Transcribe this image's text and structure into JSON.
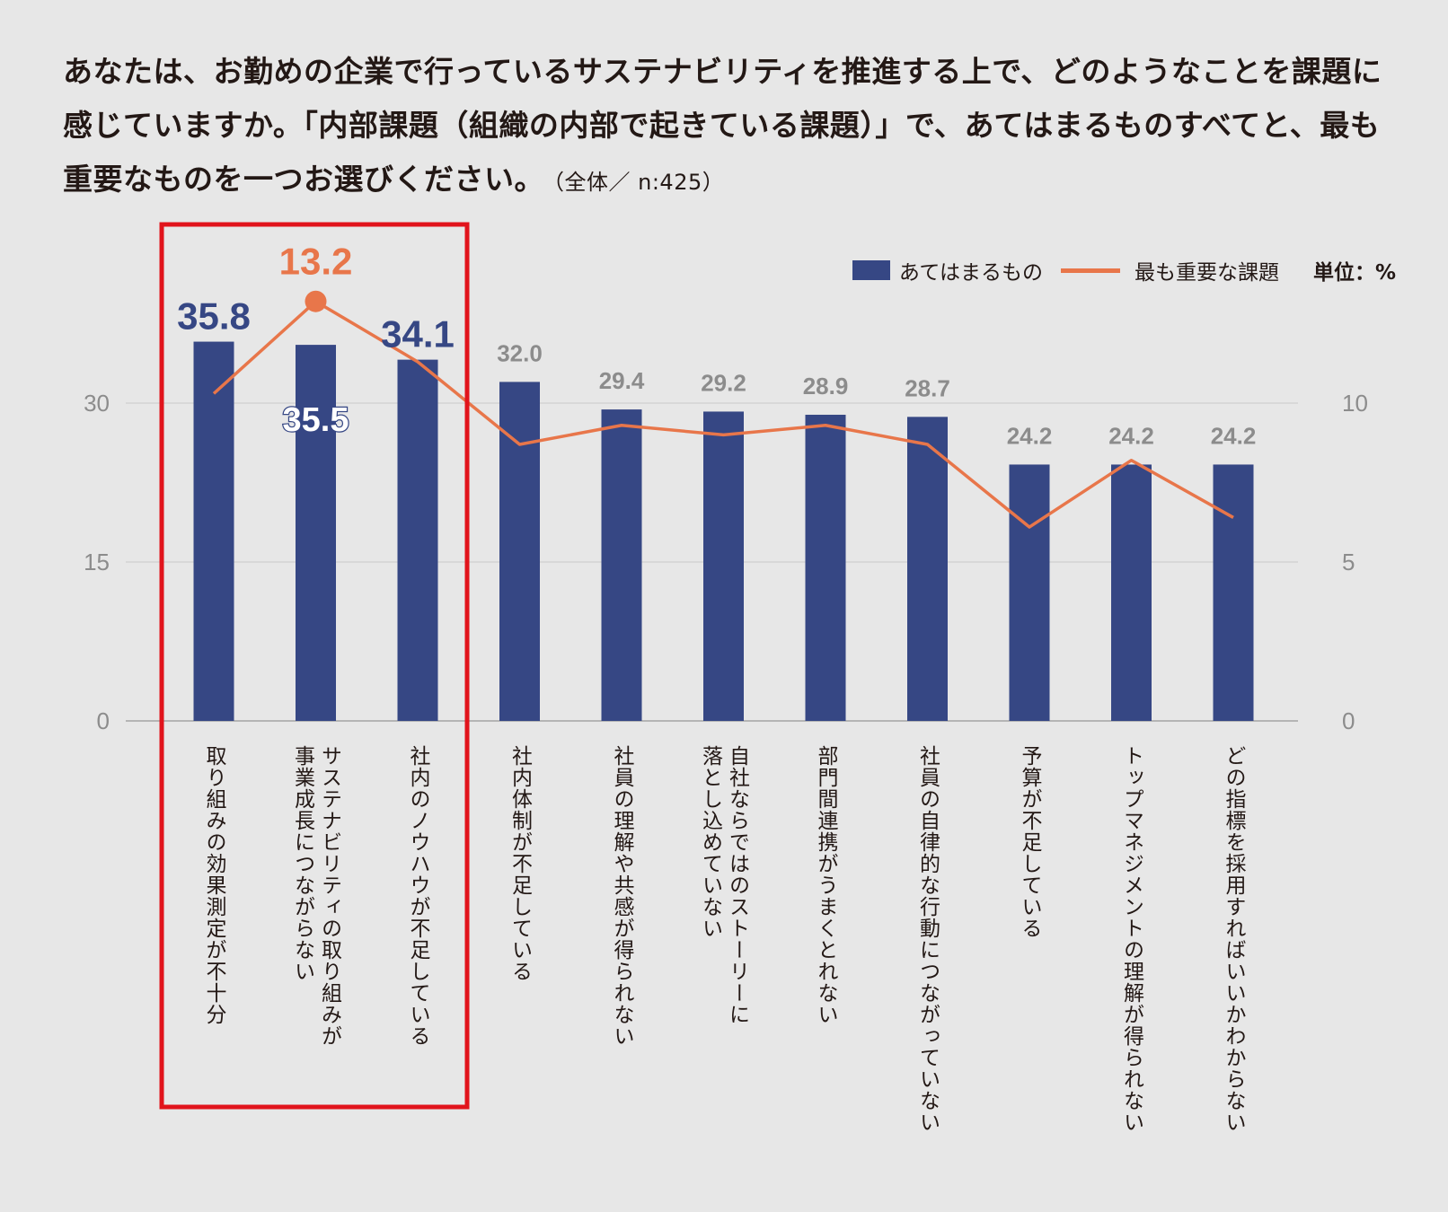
{
  "header": {
    "question": "あなたは、お勤めの企業で行っているサステナビリティを推進する上で、どのようなことを課題に感じていますか。「内部課題（組織の内部で起きている課題）」で、あてはまるものすべてと、最も重要なものを一つお選びください。",
    "sample_note": "（全体／ n:425）"
  },
  "legend": {
    "bar_label": "あてはまるもの",
    "line_label": "最も重要な課題",
    "unit": "単位：%"
  },
  "colors": {
    "bar": "#364784",
    "line": "#e8764a",
    "highlight_box": "#e1141c",
    "grid": "#cfcfcf",
    "tick": "#8c8c8c",
    "value_gray": "#8c8c8c",
    "value_blue": "#364784",
    "value_orange": "#e8764a"
  },
  "chart_data": {
    "type": "bar",
    "title": "あなたは、お勤めの企業で行っているサステナビリティを推進する上で、どのようなことを課題に感じていますか。",
    "categories": [
      "取り組みの効果測定が不十分",
      "サステナビリティの取り組みが事業成長につながらない",
      "社内のノウハウが不足している",
      "社内体制が不足している",
      "社員の理解や共感が得られない",
      "自社ならではのストーリーに落とし込めていない",
      "部門間連携がうまくとれない",
      "社員の自律的な行動につながっていない",
      "予算が不足している",
      "トップマネジメントの理解が得られない",
      "どの指標を採用すればいいかわからない"
    ],
    "category_lines": [
      [
        "取り組みの効果測定が不十分"
      ],
      [
        "サステナビリティの取り組みが",
        "事業成長につながらない"
      ],
      [
        "社内のノウハウが不足している"
      ],
      [
        "社内体制が不足している"
      ],
      [
        "社員の理解や共感が得られない"
      ],
      [
        "自社ならではのストーリーに",
        "落とし込めていない"
      ],
      [
        "部門間連携がうまくとれない"
      ],
      [
        "社員の自律的な行動につながっていない"
      ],
      [
        "予算が不足している"
      ],
      [
        "トップマネジメントの理解が得られない"
      ],
      [
        "どの指標を採用すればいいかわからない"
      ]
    ],
    "series": [
      {
        "name": "あてはまるもの",
        "type": "bar",
        "axis": "left",
        "values": [
          35.8,
          35.5,
          34.1,
          32.0,
          29.4,
          29.2,
          28.9,
          28.7,
          24.2,
          24.2,
          24.2
        ],
        "labels": [
          "35.8",
          "35.5",
          "34.1",
          "32.0",
          "29.4",
          "29.2",
          "28.9",
          "28.7",
          "24.2",
          "24.2",
          "24.2"
        ]
      },
      {
        "name": "最も重要な課題",
        "type": "line",
        "axis": "right",
        "values": [
          10.3,
          13.2,
          11.3,
          8.7,
          9.3,
          9.0,
          9.3,
          8.7,
          6.1,
          8.2,
          6.4
        ],
        "labels": [
          "",
          "13.2",
          "",
          "",
          "",
          "",
          "",
          "",
          "",
          "",
          ""
        ]
      }
    ],
    "y_left": {
      "min": 0,
      "max": 36,
      "ticks": [
        0,
        15,
        30
      ]
    },
    "y_right": {
      "min": 0,
      "max": 12,
      "ticks": [
        0,
        5,
        10
      ]
    },
    "highlight_categories": [
      0,
      1,
      2
    ],
    "grid": true,
    "legend_position": "top-right"
  }
}
